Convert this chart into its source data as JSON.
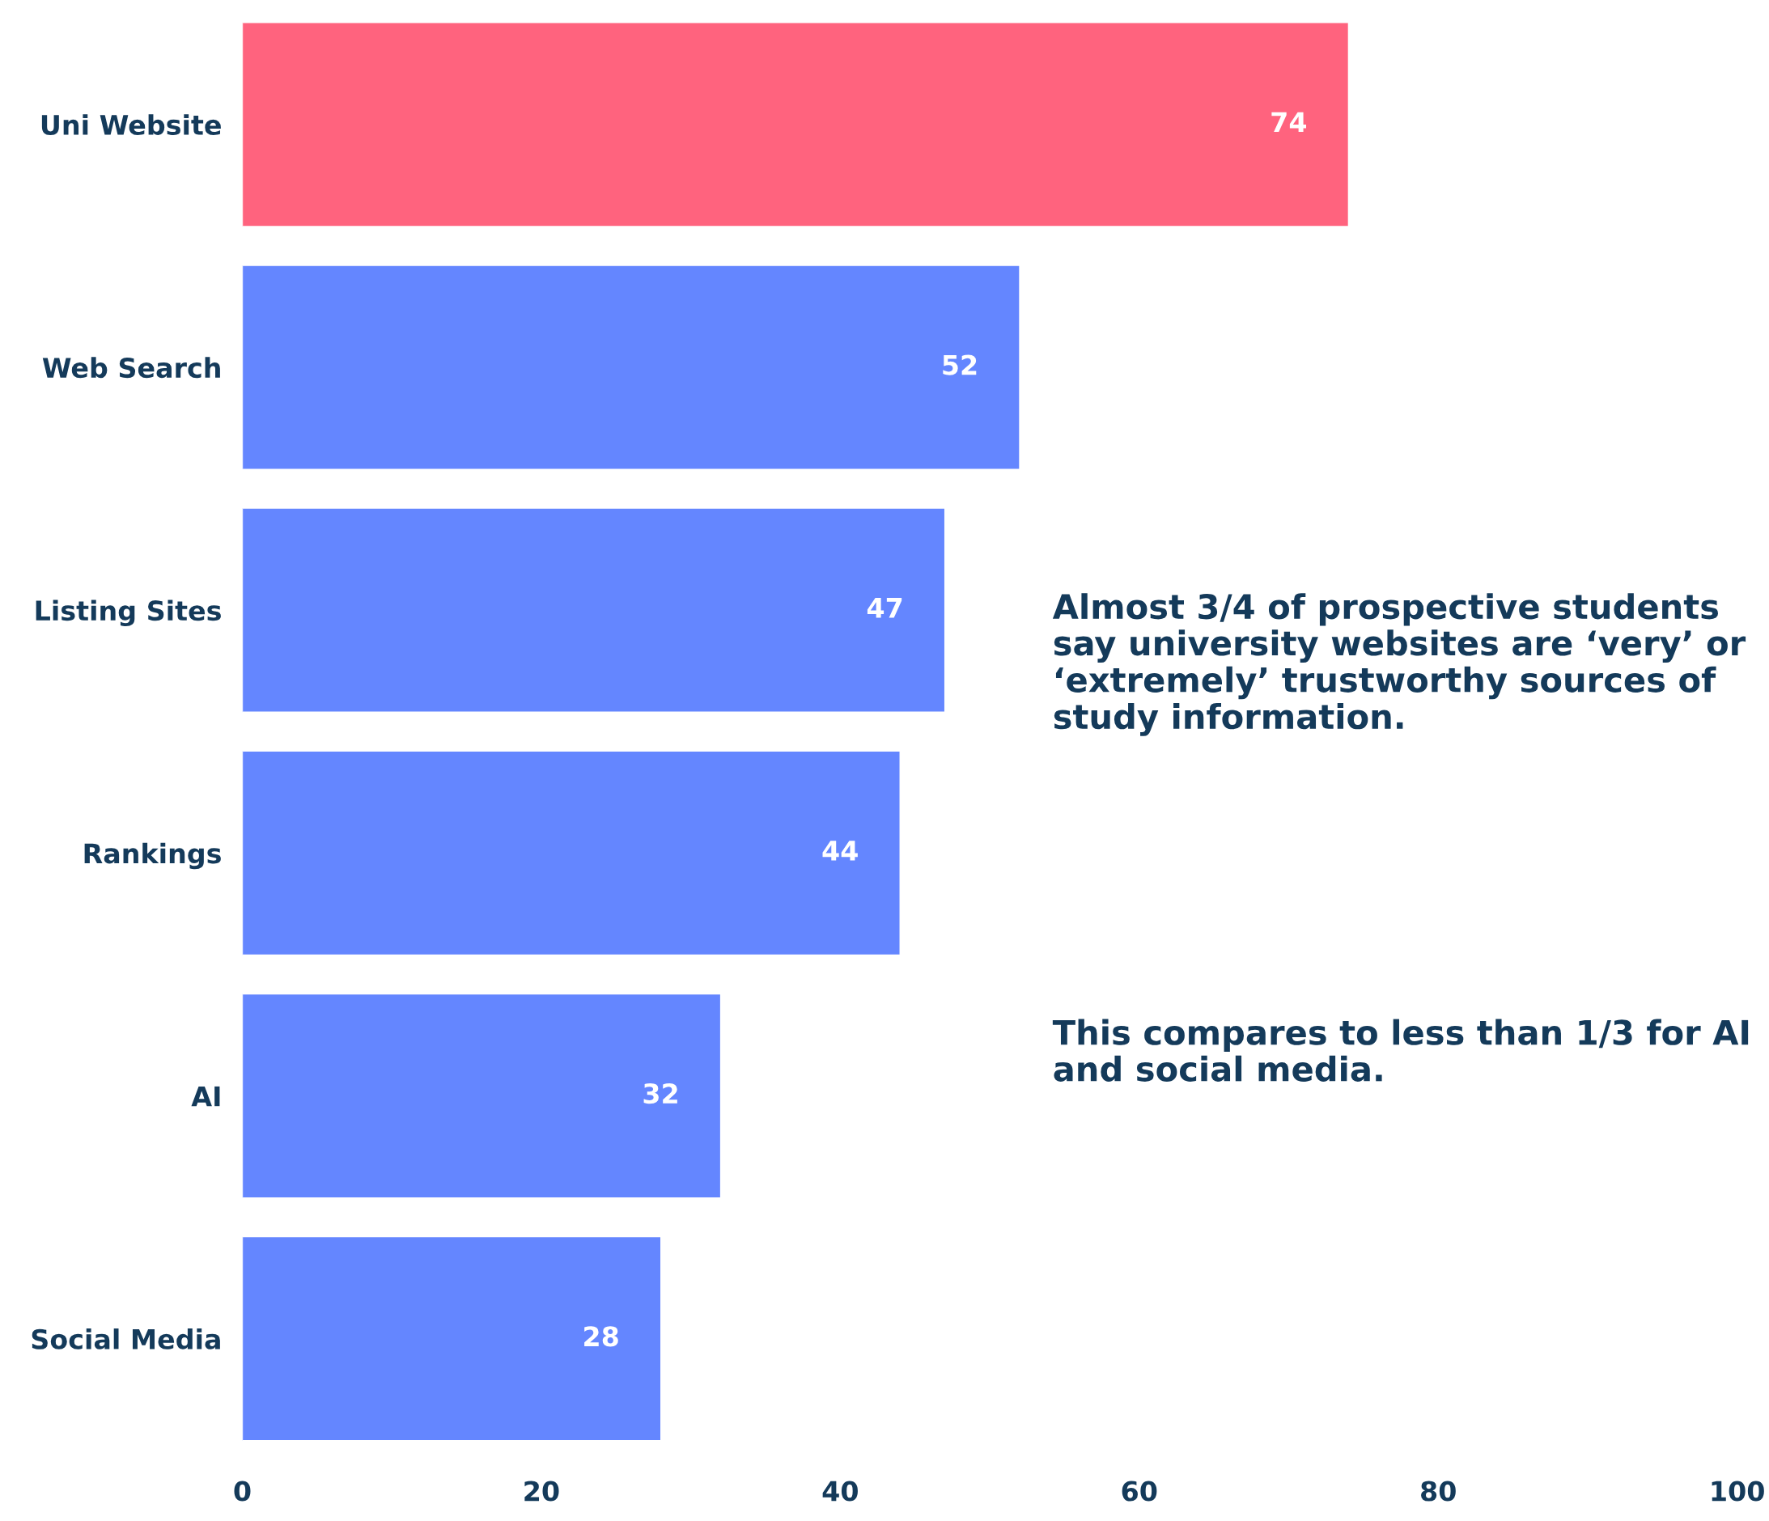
{
  "chart_data": {
    "type": "bar",
    "orientation": "horizontal",
    "categories": [
      "Uni Website",
      "Web Search",
      "Listing Sites",
      "Rankings",
      "AI",
      "Social Media"
    ],
    "values": [
      74,
      52,
      47,
      44,
      32,
      28
    ],
    "colors": [
      "#ff637e",
      "#6486ff",
      "#6486ff",
      "#6486ff",
      "#6486ff",
      "#6486ff"
    ],
    "xlim": [
      0,
      100
    ],
    "xticks": [
      0,
      20,
      40,
      60,
      80,
      100
    ],
    "data_labels": true,
    "grid": false,
    "legend": false,
    "annotations": [
      "Almost 3/4 of prospective students say university websites are ‘very’ or ‘extremely’ trustworthy sources of study information.",
      "This compares to less than 1/3 for AI and social media."
    ]
  }
}
